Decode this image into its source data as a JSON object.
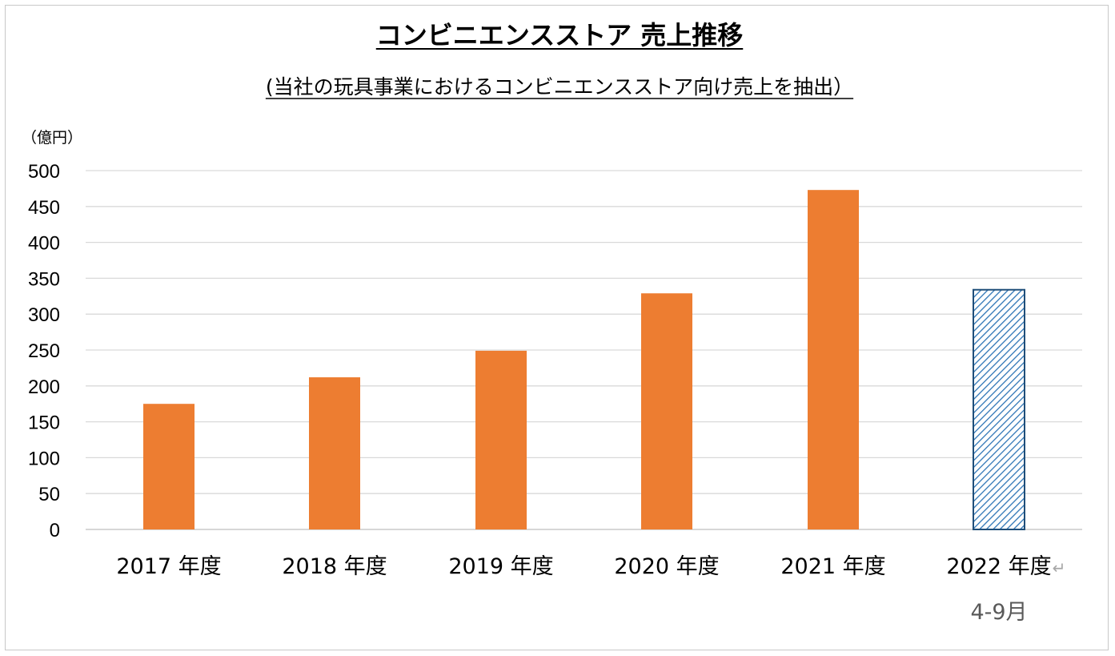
{
  "chart_data": {
    "type": "bar",
    "title": "コンビニエンスストア 売上推移",
    "subtitle": "(当社の玩具事業におけるコンビニエンスストア向け売上を抽出）",
    "unit_label": "（億円）",
    "categories": [
      "2017 年度",
      "2018 年度",
      "2019 年度",
      "2020 年度",
      "2021 年度",
      "2022 年度"
    ],
    "values": [
      175,
      212,
      249,
      329,
      473,
      334
    ],
    "partial_period_note": {
      "category": "2022 年度",
      "mark": "↵",
      "label": "4-9月"
    },
    "ylim": [
      0,
      500
    ],
    "yticks": [
      0,
      50,
      100,
      150,
      200,
      250,
      300,
      350,
      400,
      450,
      500
    ],
    "grid": true,
    "legend": "none",
    "colors": {
      "bar": "#ed7d31",
      "partial_bar_stroke": "#1f4e79",
      "partial_bar_hatch": "#2e75b6",
      "grid": "#d9d9d9",
      "note": "#595959"
    }
  }
}
